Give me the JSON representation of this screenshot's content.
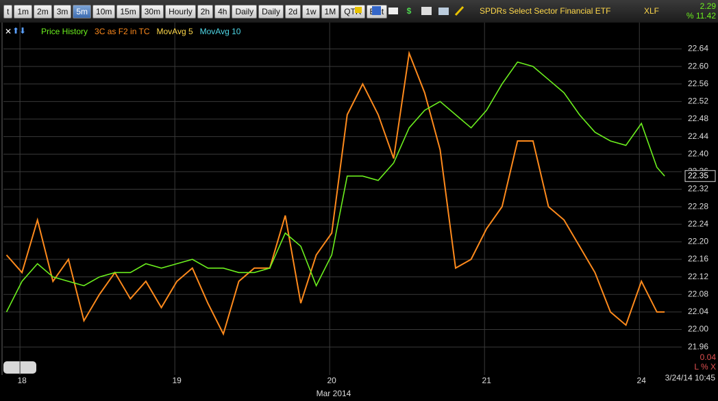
{
  "toolbar": {
    "buttons": [
      "t",
      "1m",
      "2m",
      "3m",
      "5m",
      "10m",
      "15m",
      "30m",
      "Hourly",
      "2h",
      "4h",
      "Daily",
      "Daily",
      "2d",
      "1w",
      "1M",
      "QTR",
      "Edit"
    ],
    "active": 4,
    "title": "SPDRs Select Sector Financial ETF",
    "symbol": "XLF",
    "change": "2.29",
    "change_pct": "% 11.42"
  },
  "indicators": [
    {
      "name": "MovAvg 5",
      "color": "#ffd84a"
    },
    {
      "name": "MovAvg 10",
      "color": "#4fd8e8"
    }
  ],
  "chart_data": {
    "type": "line",
    "x": [
      -0.1,
      0,
      0.1,
      0.2,
      0.3,
      0.4,
      0.5,
      0.6,
      0.7,
      0.8,
      0.9,
      1,
      1.1,
      1.2,
      1.3,
      1.4,
      1.5,
      1.6,
      1.7,
      1.8,
      1.9,
      2,
      2.1,
      2.2,
      2.3,
      2.4,
      2.5,
      2.6,
      2.7,
      2.8,
      2.9,
      3,
      3.1,
      3.2,
      3.3,
      3.4,
      3.5,
      3.6,
      3.7,
      3.8,
      3.9,
      4,
      4.1,
      4.15
    ],
    "series": [
      {
        "name": "Price History",
        "color": "#6cf01e",
        "values": [
          22.04,
          22.11,
          22.15,
          22.12,
          22.11,
          22.1,
          22.12,
          22.13,
          22.13,
          22.15,
          22.14,
          22.15,
          22.16,
          22.14,
          22.14,
          22.13,
          22.13,
          22.14,
          22.22,
          22.19,
          22.1,
          22.17,
          22.35,
          22.35,
          22.34,
          22.38,
          22.46,
          22.5,
          22.52,
          22.49,
          22.46,
          22.5,
          22.56,
          22.61,
          22.6,
          22.57,
          22.54,
          22.49,
          22.45,
          22.43,
          22.42,
          22.47,
          22.37,
          22.35
        ]
      },
      {
        "name": "3C as F2 in TC",
        "color": "#ff8a1c",
        "values": [
          22.17,
          22.13,
          22.25,
          22.11,
          22.16,
          22.02,
          22.08,
          22.13,
          22.07,
          22.11,
          22.05,
          22.11,
          22.14,
          22.06,
          21.99,
          22.11,
          22.14,
          22.14,
          22.26,
          22.06,
          22.17,
          22.22,
          22.49,
          22.56,
          22.49,
          22.39,
          22.63,
          22.54,
          22.41,
          22.14,
          22.16,
          22.23,
          22.28,
          22.43,
          22.43,
          22.28,
          22.25,
          22.19,
          22.13,
          22.04,
          22.01,
          22.11,
          22.04,
          22.04
        ]
      }
    ],
    "xlim": [
      -0.12,
      4.26
    ],
    "xticks": [
      {
        "value": 0,
        "label": "18"
      },
      {
        "value": 1,
        "label": "19"
      },
      {
        "value": 2,
        "label": "20"
      },
      {
        "value": 3,
        "label": "21"
      },
      {
        "value": 4,
        "label": "24"
      }
    ],
    "x_label": "Mar 2014",
    "ylim": [
      21.94,
      22.7
    ],
    "yticks": [
      22.64,
      {
        "value": 22.6,
        "label": "22.60"
      },
      22.56,
      22.52,
      22.48,
      22.44,
      {
        "value": 22.4,
        "label": "22.40"
      },
      22.36,
      22.32,
      22.28,
      22.24,
      {
        "value": 22.2,
        "label": "22.20"
      },
      22.16,
      22.12,
      22.08,
      22.04,
      {
        "value": 22,
        "label": "22.00"
      },
      21.96
    ],
    "grid": true,
    "last_price": 22.35
  },
  "footer": {
    "scale_value": "0.04",
    "scale_controls": "L % X",
    "timestamp": "3/24/14 10:45"
  }
}
